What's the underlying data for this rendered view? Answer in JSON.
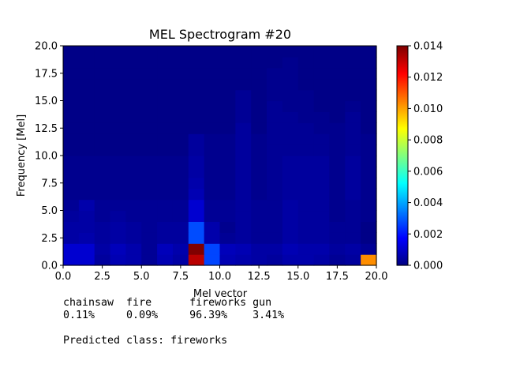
{
  "chart_data": {
    "type": "heatmap",
    "title": "MEL Spectrogram #20",
    "xlabel": "Mel vector",
    "ylabel": "Frequency [Mel]",
    "xlim": [
      0,
      20
    ],
    "ylim": [
      0,
      20
    ],
    "x_ticks": [
      "0.0",
      "2.5",
      "5.0",
      "7.5",
      "10.0",
      "12.5",
      "15.0",
      "17.5",
      "20.0"
    ],
    "y_ticks": [
      "0.0",
      "2.5",
      "5.0",
      "7.5",
      "10.0",
      "12.5",
      "15.0",
      "17.5",
      "20.0"
    ],
    "colorbar": {
      "colormap": "jet",
      "range": [
        0,
        0.014
      ],
      "ticks": [
        "0.000",
        "0.002",
        "0.004",
        "0.006",
        "0.008",
        "0.010",
        "0.012",
        "0.014"
      ]
    },
    "grid": "off",
    "n_cols": 20,
    "n_rows": 20,
    "values_rows_bottom_to_top": [
      [
        0.0011,
        0.0011,
        0.0004,
        0.0007,
        0.0006,
        0.0003,
        0.0007,
        0.0005,
        0.0132,
        0.0027,
        0.0007,
        0.0006,
        0.0005,
        0.0004,
        0.0006,
        0.0006,
        0.0005,
        0.0003,
        0.0004,
        0.0103
      ],
      [
        0.0011,
        0.0011,
        0.0005,
        0.0008,
        0.0006,
        0.0003,
        0.0008,
        0.0006,
        0.014,
        0.0027,
        0.0008,
        0.0007,
        0.0005,
        0.0005,
        0.0007,
        0.0006,
        0.0006,
        0.0004,
        0.0005,
        0.0003
      ],
      [
        0.0005,
        0.0006,
        0.0004,
        0.0005,
        0.0004,
        0.0003,
        0.0004,
        0.0004,
        0.0028,
        0.0006,
        0.0003,
        0.0004,
        0.0003,
        0.0003,
        0.0005,
        0.0004,
        0.0004,
        0.0003,
        0.0003,
        0.0001
      ],
      [
        0.0005,
        0.0005,
        0.0004,
        0.0005,
        0.0004,
        0.0003,
        0.0004,
        0.0004,
        0.0028,
        0.0006,
        0.0002,
        0.0004,
        0.0003,
        0.0003,
        0.0005,
        0.0004,
        0.0004,
        0.0003,
        0.0003,
        0.0001
      ],
      [
        0.0004,
        0.0005,
        0.0003,
        0.0004,
        0.0003,
        0.0003,
        0.0003,
        0.0003,
        0.0011,
        0.0003,
        0.0003,
        0.0004,
        0.0003,
        0.0003,
        0.0005,
        0.0004,
        0.0004,
        0.0002,
        0.0003,
        0.0002
      ],
      [
        0.0003,
        0.0006,
        0.0003,
        0.0003,
        0.0003,
        0.0003,
        0.0003,
        0.0003,
        0.0011,
        0.0003,
        0.0003,
        0.0004,
        0.0003,
        0.0003,
        0.0005,
        0.0004,
        0.0004,
        0.0002,
        0.0003,
        0.0002
      ],
      [
        0.0002,
        0.0002,
        0.0002,
        0.0002,
        0.0002,
        0.0002,
        0.0002,
        0.0002,
        0.0007,
        0.0002,
        0.0002,
        0.0004,
        0.0002,
        0.0003,
        0.0004,
        0.0004,
        0.0004,
        0.0002,
        0.0004,
        0.0002
      ],
      [
        0.0002,
        0.0002,
        0.0002,
        0.0002,
        0.0002,
        0.0002,
        0.0002,
        0.0002,
        0.0006,
        0.0002,
        0.0002,
        0.0004,
        0.0002,
        0.0003,
        0.0004,
        0.0004,
        0.0004,
        0.0002,
        0.0004,
        0.0002
      ],
      [
        0.0002,
        0.0002,
        0.0002,
        0.0002,
        0.0002,
        0.0002,
        0.0002,
        0.0002,
        0.0005,
        0.0002,
        0.0002,
        0.0004,
        0.0002,
        0.0003,
        0.0004,
        0.0004,
        0.0004,
        0.0002,
        0.0004,
        0.0002
      ],
      [
        0.0002,
        0.0002,
        0.0002,
        0.0002,
        0.0002,
        0.0002,
        0.0002,
        0.0002,
        0.0005,
        0.0002,
        0.0002,
        0.0004,
        0.0002,
        0.0003,
        0.0004,
        0.0004,
        0.0004,
        0.0002,
        0.0004,
        0.0002
      ],
      [
        0.0001,
        0.0001,
        0.0001,
        0.0001,
        0.0001,
        0.0001,
        0.0001,
        0.0001,
        0.0004,
        0.0002,
        0.0002,
        0.0004,
        0.0002,
        0.0003,
        0.0003,
        0.0003,
        0.0003,
        0.0002,
        0.0003,
        0.0002
      ],
      [
        0.0001,
        0.0001,
        0.0001,
        0.0001,
        0.0001,
        0.0001,
        0.0001,
        0.0001,
        0.0004,
        0.0002,
        0.0002,
        0.0004,
        0.0002,
        0.0003,
        0.0003,
        0.0003,
        0.0003,
        0.0002,
        0.0003,
        0.0002
      ],
      [
        0.0001,
        0.0001,
        0.0001,
        0.0001,
        0.0001,
        0.0001,
        0.0001,
        0.0001,
        0.0001,
        0.0001,
        0.0001,
        0.0004,
        0.0001,
        0.0003,
        0.0003,
        0.0003,
        0.0002,
        0.0002,
        0.0003,
        0.0001
      ],
      [
        0.0001,
        0.0001,
        0.0001,
        0.0001,
        0.0001,
        0.0001,
        0.0001,
        0.0001,
        0.0001,
        0.0001,
        0.0001,
        0.0003,
        0.0001,
        0.0003,
        0.0003,
        0.0002,
        0.0002,
        0.0001,
        0.0003,
        0.0001
      ],
      [
        0.0001,
        0.0001,
        0.0001,
        0.0001,
        0.0001,
        0.0001,
        0.0001,
        0.0001,
        0.0001,
        0.0001,
        0.0001,
        0.0003,
        0.0001,
        0.0003,
        0.0002,
        0.0002,
        0.0001,
        0.0001,
        0.0002,
        0.0001
      ],
      [
        0.0001,
        0.0001,
        0.0001,
        0.0001,
        0.0001,
        0.0001,
        0.0001,
        0.0001,
        0.0001,
        0.0001,
        0.0001,
        0.0003,
        0.0001,
        0.0002,
        0.0002,
        0.0002,
        0.0001,
        0.0001,
        0.0001,
        0.0001
      ],
      [
        0.0001,
        0.0001,
        0.0001,
        0.0001,
        0.0001,
        0.0001,
        0.0001,
        0.0001,
        0.0001,
        0.0001,
        0.0001,
        0.0001,
        0.0001,
        0.0002,
        0.0002,
        0.0001,
        0.0001,
        0.0001,
        0.0001,
        0.0001
      ],
      [
        0.0001,
        0.0001,
        0.0001,
        0.0001,
        0.0001,
        0.0001,
        0.0001,
        0.0001,
        0.0001,
        0.0001,
        0.0001,
        0.0001,
        0.0001,
        0.0002,
        0.0002,
        0.0001,
        0.0001,
        0.0001,
        0.0001,
        0.0001
      ],
      [
        0.0001,
        0.0001,
        0.0001,
        0.0001,
        0.0001,
        0.0001,
        0.0001,
        0.0001,
        0.0001,
        0.0001,
        0.0001,
        0.0001,
        0.0001,
        0.0001,
        0.0002,
        0.0001,
        0.0001,
        0.0001,
        0.0001,
        0.0001
      ],
      [
        0.0001,
        0.0001,
        0.0001,
        0.0001,
        0.0001,
        0.0001,
        0.0001,
        0.0001,
        0.0001,
        0.0001,
        0.0001,
        0.0001,
        0.0001,
        0.0001,
        0.0001,
        0.0001,
        0.0001,
        0.0001,
        0.0001,
        0.0001
      ]
    ]
  },
  "prediction": {
    "classes_line": "chainsaw  fire      fireworks gun",
    "percent_line": "0.11%     0.09%     96.39%    3.41%",
    "predicted_line": "Predicted class: fireworks"
  }
}
